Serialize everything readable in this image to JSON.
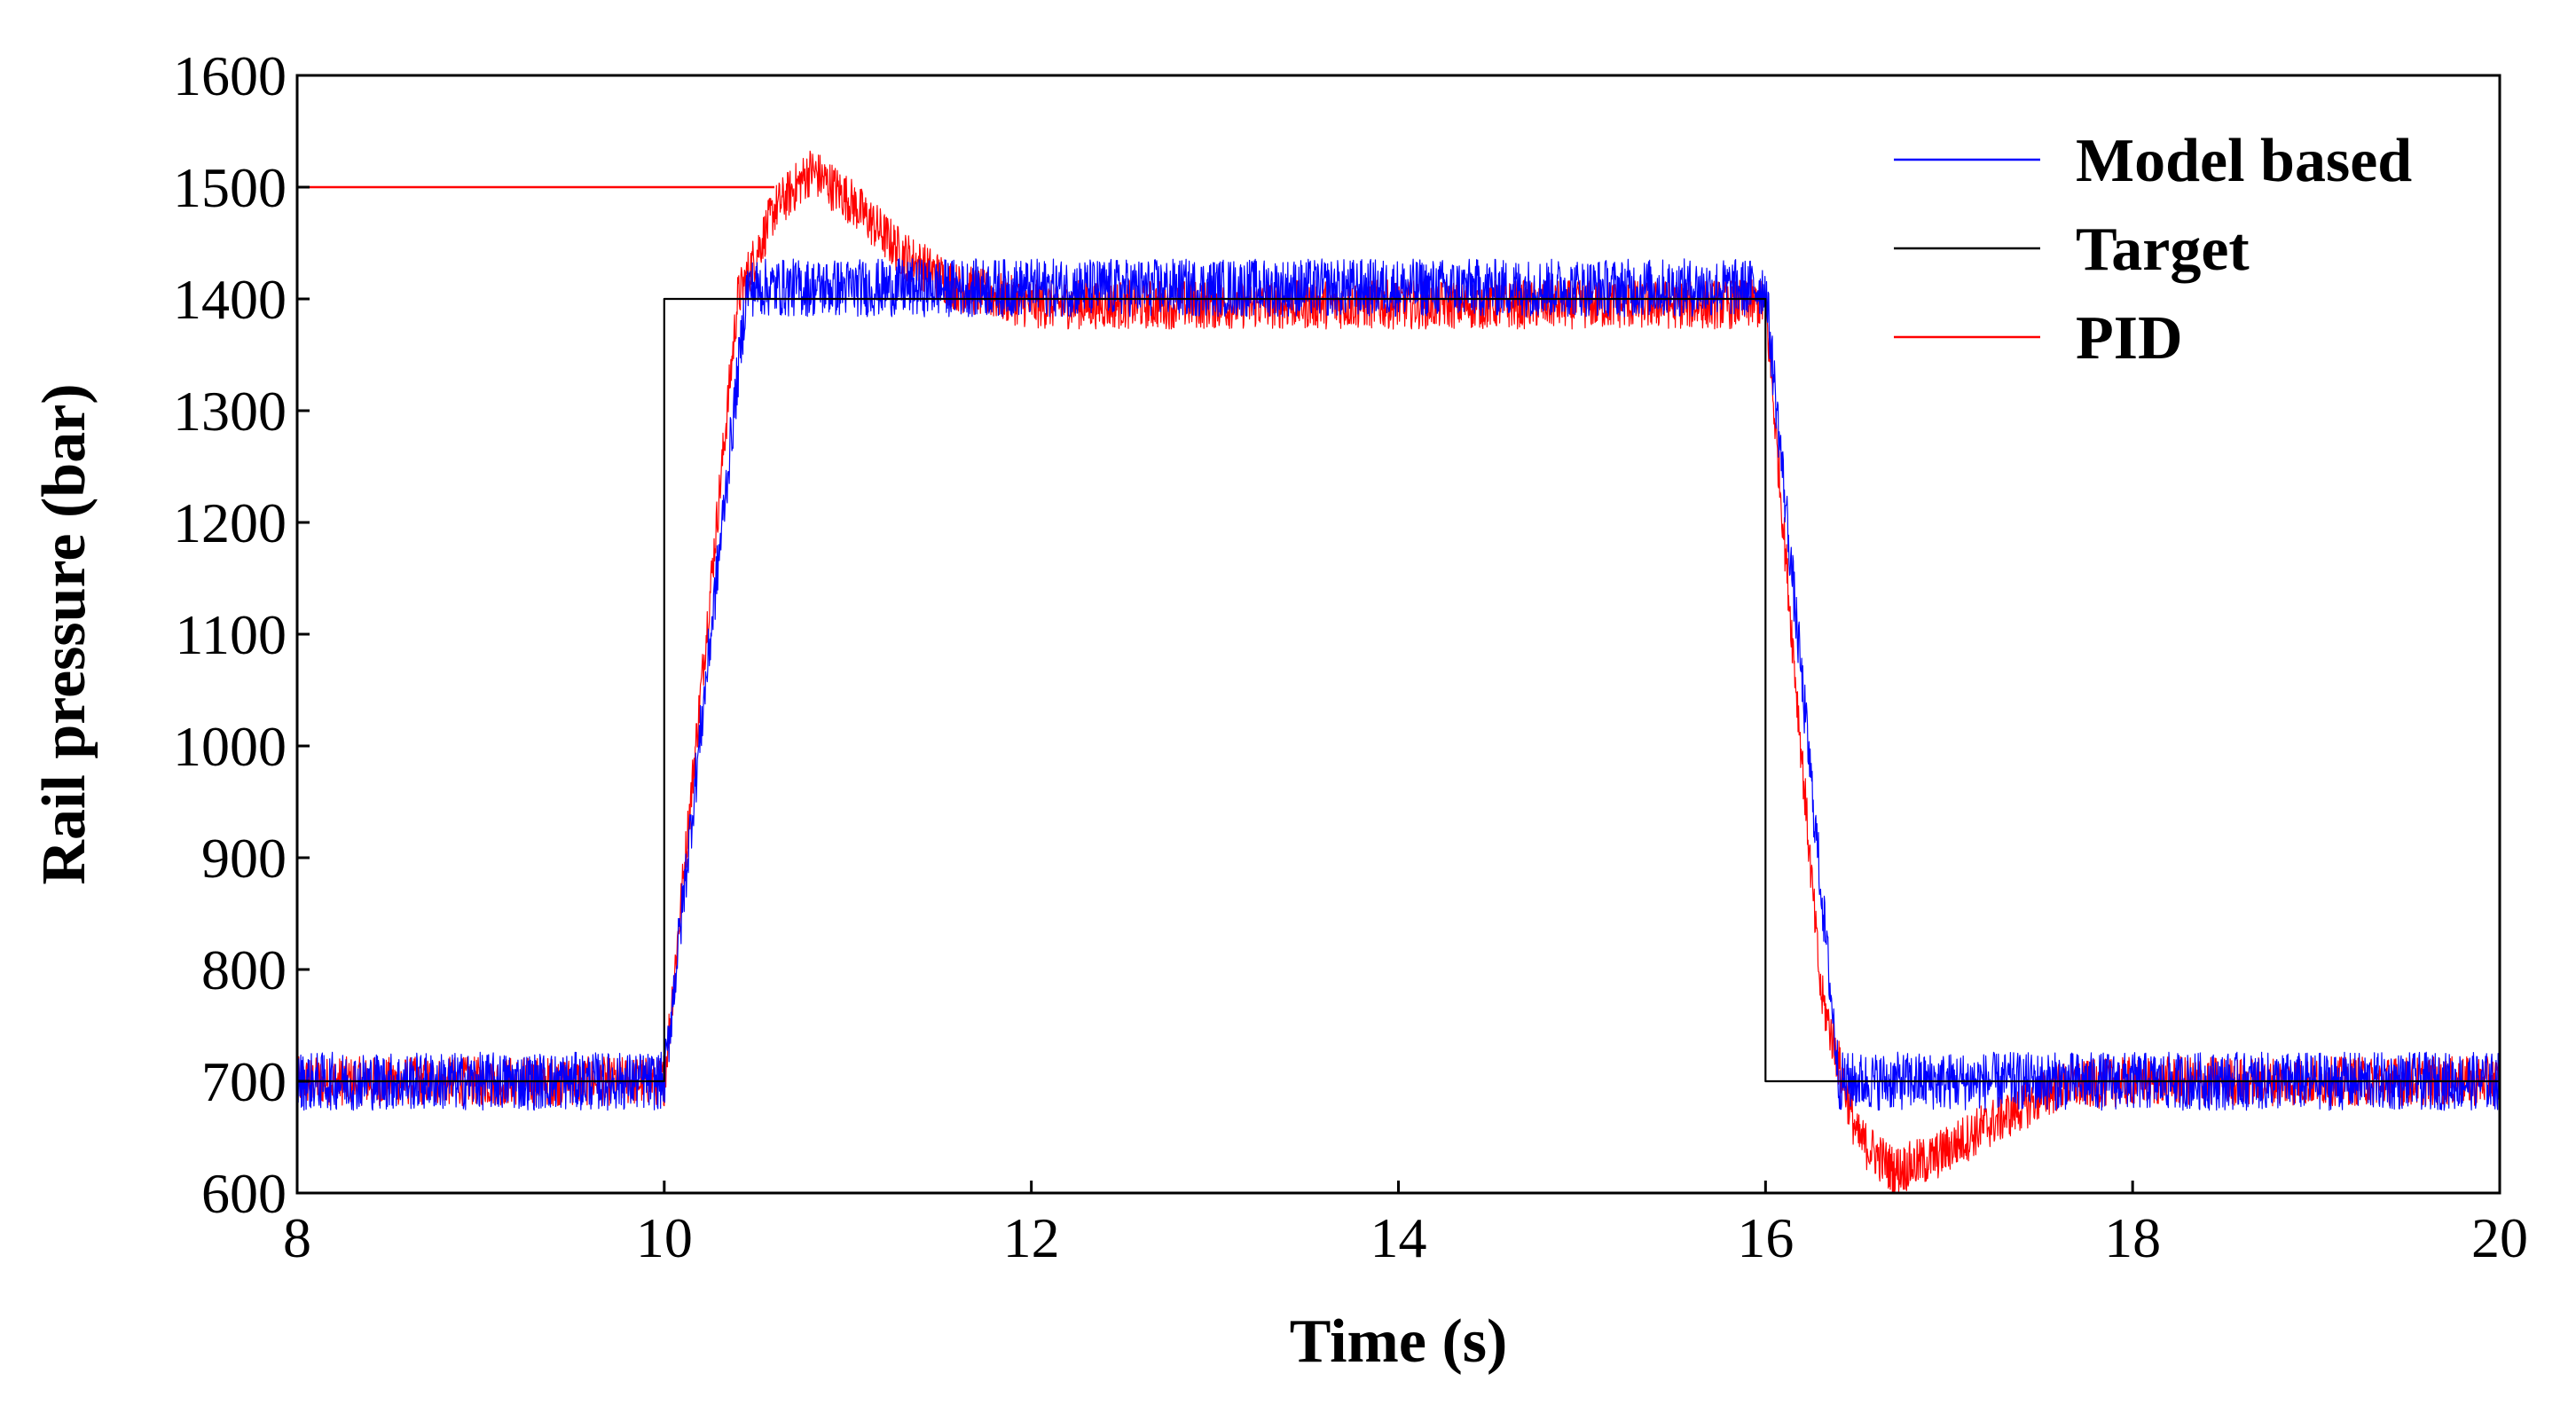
{
  "chart_data": {
    "type": "line",
    "title": "",
    "xlabel": "Time (s)",
    "ylabel": "Rail pressure (bar)",
    "xlim": [
      8,
      20
    ],
    "ylim": [
      600,
      1600
    ],
    "xticks": [
      8,
      10,
      12,
      14,
      16,
      18,
      20
    ],
    "yticks": [
      600,
      700,
      800,
      900,
      1000,
      1100,
      1200,
      1300,
      1400,
      1500,
      1600
    ],
    "grid": false,
    "legend_position": "top-right",
    "series": [
      {
        "name": "Model based",
        "color": "#0000ff",
        "noise": 26,
        "x": [
          8,
          10,
          10.45,
          16,
          16.4,
          20
        ],
        "y": [
          700,
          700,
          1410,
          1410,
          700,
          700
        ]
      },
      {
        "name": "Target",
        "color": "#000000",
        "noise": 0,
        "x": [
          8,
          10,
          10,
          16,
          16,
          20
        ],
        "y": [
          700,
          700,
          1400,
          1400,
          700,
          700
        ]
      },
      {
        "name": "PID",
        "color": "#ff0000",
        "noise": 22,
        "x": [
          8,
          10,
          10.4,
          10.6,
          10.8,
          11.0,
          11.3,
          11.6,
          12.0,
          13,
          16,
          16.3,
          16.5,
          16.7,
          16.9,
          17.2,
          17.6,
          18.0,
          20
        ],
        "y": [
          700,
          700,
          1400,
          1480,
          1515,
          1490,
          1440,
          1410,
          1395,
          1395,
          1395,
          780,
          650,
          620,
          630,
          660,
          695,
          700,
          700
        ]
      }
    ],
    "annotations": [
      {
        "name": "reference-line",
        "color": "#ff0000",
        "x": [
          8,
          10.6
        ],
        "y": [
          1500,
          1500
        ]
      }
    ]
  }
}
